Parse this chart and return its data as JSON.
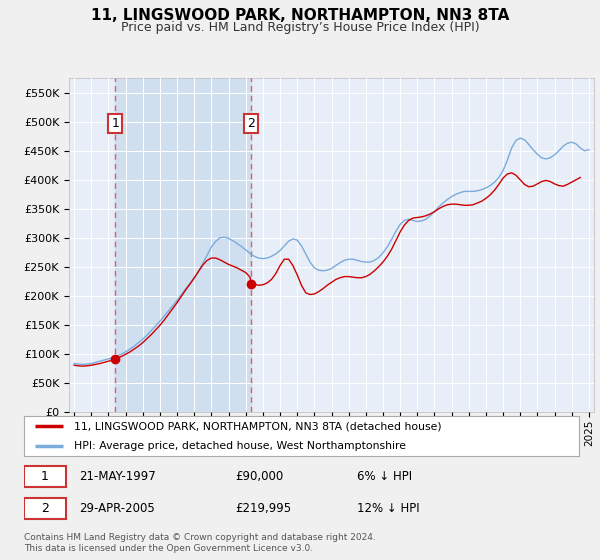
{
  "title": "11, LINGSWOOD PARK, NORTHAMPTON, NN3 8TA",
  "subtitle": "Price paid vs. HM Land Registry’s House Price Index (HPI)",
  "background_color": "#f0f0f0",
  "plot_bg_color": "#e8eef8",
  "shade_color": "#d0dff0",
  "grid_color": "#ffffff",
  "ylim": [
    0,
    575000
  ],
  "xlim": [
    1994.7,
    2025.3
  ],
  "yticks": [
    0,
    50000,
    100000,
    150000,
    200000,
    250000,
    300000,
    350000,
    400000,
    450000,
    500000,
    550000
  ],
  "ytick_labels": [
    "£0",
    "£50K",
    "£100K",
    "£150K",
    "£200K",
    "£250K",
    "£300K",
    "£350K",
    "£400K",
    "£450K",
    "£500K",
    "£550K"
  ],
  "xticks": [
    1995,
    1996,
    1997,
    1998,
    1999,
    2000,
    2001,
    2002,
    2003,
    2004,
    2005,
    2006,
    2007,
    2008,
    2009,
    2010,
    2011,
    2012,
    2013,
    2014,
    2015,
    2016,
    2017,
    2018,
    2019,
    2020,
    2021,
    2022,
    2023,
    2024,
    2025
  ],
  "sale1_year": 1997.388,
  "sale1_price": 90000,
  "sale1_label": "1",
  "sale1_date": "21-MAY-1997",
  "sale1_amount": "£90,000",
  "sale1_hpi": "6% ↓ HPI",
  "sale2_year": 2005.327,
  "sale2_price": 219995,
  "sale2_label": "2",
  "sale2_date": "29-APR-2005",
  "sale2_amount": "£219,995",
  "sale2_hpi": "12% ↓ HPI",
  "red_line_color": "#cc0000",
  "blue_line_color": "#7aabdb",
  "marker_color": "#cc0000",
  "dashed_line_color": "#e06060",
  "legend_line1": "11, LINGSWOOD PARK, NORTHAMPTON, NN3 8TA (detached house)",
  "legend_line2": "HPI: Average price, detached house, West Northamptonshire",
  "footer": "Contains HM Land Registry data © Crown copyright and database right 2024.\nThis data is licensed under the Open Government Licence v3.0.",
  "hpi_years": [
    1995.0,
    1995.25,
    1995.5,
    1995.75,
    1996.0,
    1996.25,
    1996.5,
    1996.75,
    1997.0,
    1997.25,
    1997.5,
    1997.75,
    1998.0,
    1998.25,
    1998.5,
    1998.75,
    1999.0,
    1999.25,
    1999.5,
    1999.75,
    2000.0,
    2000.25,
    2000.5,
    2000.75,
    2001.0,
    2001.25,
    2001.5,
    2001.75,
    2002.0,
    2002.25,
    2002.5,
    2002.75,
    2003.0,
    2003.25,
    2003.5,
    2003.75,
    2004.0,
    2004.25,
    2004.5,
    2004.75,
    2005.0,
    2005.25,
    2005.5,
    2005.75,
    2006.0,
    2006.25,
    2006.5,
    2006.75,
    2007.0,
    2007.25,
    2007.5,
    2007.75,
    2008.0,
    2008.25,
    2008.5,
    2008.75,
    2009.0,
    2009.25,
    2009.5,
    2009.75,
    2010.0,
    2010.25,
    2010.5,
    2010.75,
    2011.0,
    2011.25,
    2011.5,
    2011.75,
    2012.0,
    2012.25,
    2012.5,
    2012.75,
    2013.0,
    2013.25,
    2013.5,
    2013.75,
    2014.0,
    2014.25,
    2014.5,
    2014.75,
    2015.0,
    2015.25,
    2015.5,
    2015.75,
    2016.0,
    2016.25,
    2016.5,
    2016.75,
    2017.0,
    2017.25,
    2017.5,
    2017.75,
    2018.0,
    2018.25,
    2018.5,
    2018.75,
    2019.0,
    2019.25,
    2019.5,
    2019.75,
    2020.0,
    2020.25,
    2020.5,
    2020.75,
    2021.0,
    2021.25,
    2021.5,
    2021.75,
    2022.0,
    2022.25,
    2022.5,
    2022.75,
    2023.0,
    2023.25,
    2023.5,
    2023.75,
    2024.0,
    2024.25,
    2024.5,
    2024.75,
    2025.0
  ],
  "hpi_values": [
    83000,
    82000,
    81500,
    82000,
    83000,
    85000,
    87000,
    89000,
    91000,
    93000,
    96000,
    99000,
    103000,
    108000,
    113000,
    119000,
    125000,
    132000,
    140000,
    148000,
    156000,
    165000,
    174000,
    183000,
    192000,
    202000,
    212000,
    221000,
    230000,
    242000,
    256000,
    270000,
    284000,
    294000,
    300000,
    301000,
    299000,
    295000,
    290000,
    285000,
    279000,
    273000,
    268000,
    265000,
    264000,
    265000,
    268000,
    272000,
    278000,
    286000,
    294000,
    298000,
    296000,
    286000,
    272000,
    258000,
    248000,
    244000,
    243000,
    244000,
    247000,
    252000,
    257000,
    261000,
    263000,
    263000,
    261000,
    259000,
    258000,
    258000,
    261000,
    266000,
    274000,
    284000,
    297000,
    311000,
    323000,
    330000,
    332000,
    330000,
    328000,
    329000,
    332000,
    338000,
    345000,
    353000,
    360000,
    366000,
    371000,
    375000,
    378000,
    380000,
    380000,
    380000,
    381000,
    383000,
    386000,
    390000,
    396000,
    404000,
    416000,
    434000,
    455000,
    468000,
    472000,
    469000,
    461000,
    452000,
    444000,
    438000,
    436000,
    438000,
    443000,
    450000,
    458000,
    463000,
    465000,
    462000,
    455000,
    450000,
    452000
  ],
  "red_years": [
    1995.0,
    1995.25,
    1995.5,
    1995.75,
    1996.0,
    1996.25,
    1996.5,
    1996.75,
    1997.0,
    1997.25,
    1997.388,
    1997.5,
    1997.75,
    1998.0,
    1998.25,
    1998.5,
    1998.75,
    1999.0,
    1999.25,
    1999.5,
    1999.75,
    2000.0,
    2000.25,
    2000.5,
    2000.75,
    2001.0,
    2001.25,
    2001.5,
    2001.75,
    2002.0,
    2002.25,
    2002.5,
    2002.75,
    2003.0,
    2003.25,
    2003.5,
    2003.75,
    2004.0,
    2004.25,
    2004.5,
    2004.75,
    2005.0,
    2005.25,
    2005.327,
    2005.5,
    2005.75,
    2006.0,
    2006.25,
    2006.5,
    2006.75,
    2007.0,
    2007.25,
    2007.5,
    2007.75,
    2008.0,
    2008.25,
    2008.5,
    2008.75,
    2009.0,
    2009.25,
    2009.5,
    2009.75,
    2010.0,
    2010.25,
    2010.5,
    2010.75,
    2011.0,
    2011.25,
    2011.5,
    2011.75,
    2012.0,
    2012.25,
    2012.5,
    2012.75,
    2013.0,
    2013.25,
    2013.5,
    2013.75,
    2014.0,
    2014.25,
    2014.5,
    2014.75,
    2015.0,
    2015.25,
    2015.5,
    2015.75,
    2016.0,
    2016.25,
    2016.5,
    2016.75,
    2017.0,
    2017.25,
    2017.5,
    2017.75,
    2018.0,
    2018.25,
    2018.5,
    2018.75,
    2019.0,
    2019.25,
    2019.5,
    2019.75,
    2020.0,
    2020.25,
    2020.5,
    2020.75,
    2021.0,
    2021.25,
    2021.5,
    2021.75,
    2022.0,
    2022.25,
    2022.5,
    2022.75,
    2023.0,
    2023.25,
    2023.5,
    2023.75,
    2024.0,
    2024.25,
    2024.5
  ],
  "red_values": [
    80000,
    79000,
    78500,
    79000,
    80000,
    81500,
    83000,
    85000,
    87000,
    89000,
    90000,
    92000,
    95000,
    99000,
    103000,
    108000,
    113000,
    119000,
    126000,
    133000,
    141000,
    149000,
    158000,
    168000,
    178000,
    188000,
    199000,
    210000,
    220000,
    231000,
    242000,
    253000,
    261000,
    265000,
    265000,
    262000,
    258000,
    254000,
    251000,
    248000,
    244000,
    240000,
    232000,
    219995,
    220000,
    218000,
    219000,
    222000,
    228000,
    238000,
    252000,
    263000,
    263000,
    252000,
    236000,
    218000,
    205000,
    202000,
    203000,
    207000,
    212000,
    218000,
    223000,
    228000,
    231000,
    233000,
    233000,
    232000,
    231000,
    231000,
    233000,
    237000,
    243000,
    250000,
    258000,
    268000,
    280000,
    295000,
    310000,
    322000,
    330000,
    334000,
    335000,
    336000,
    338000,
    341000,
    345000,
    350000,
    354000,
    357000,
    358000,
    358000,
    357000,
    356000,
    356000,
    357000,
    360000,
    363000,
    368000,
    374000,
    382000,
    392000,
    403000,
    410000,
    412000,
    408000,
    400000,
    392000,
    388000,
    389000,
    393000,
    397000,
    399000,
    397000,
    393000,
    390000,
    389000,
    392000,
    396000,
    400000,
    404000
  ]
}
